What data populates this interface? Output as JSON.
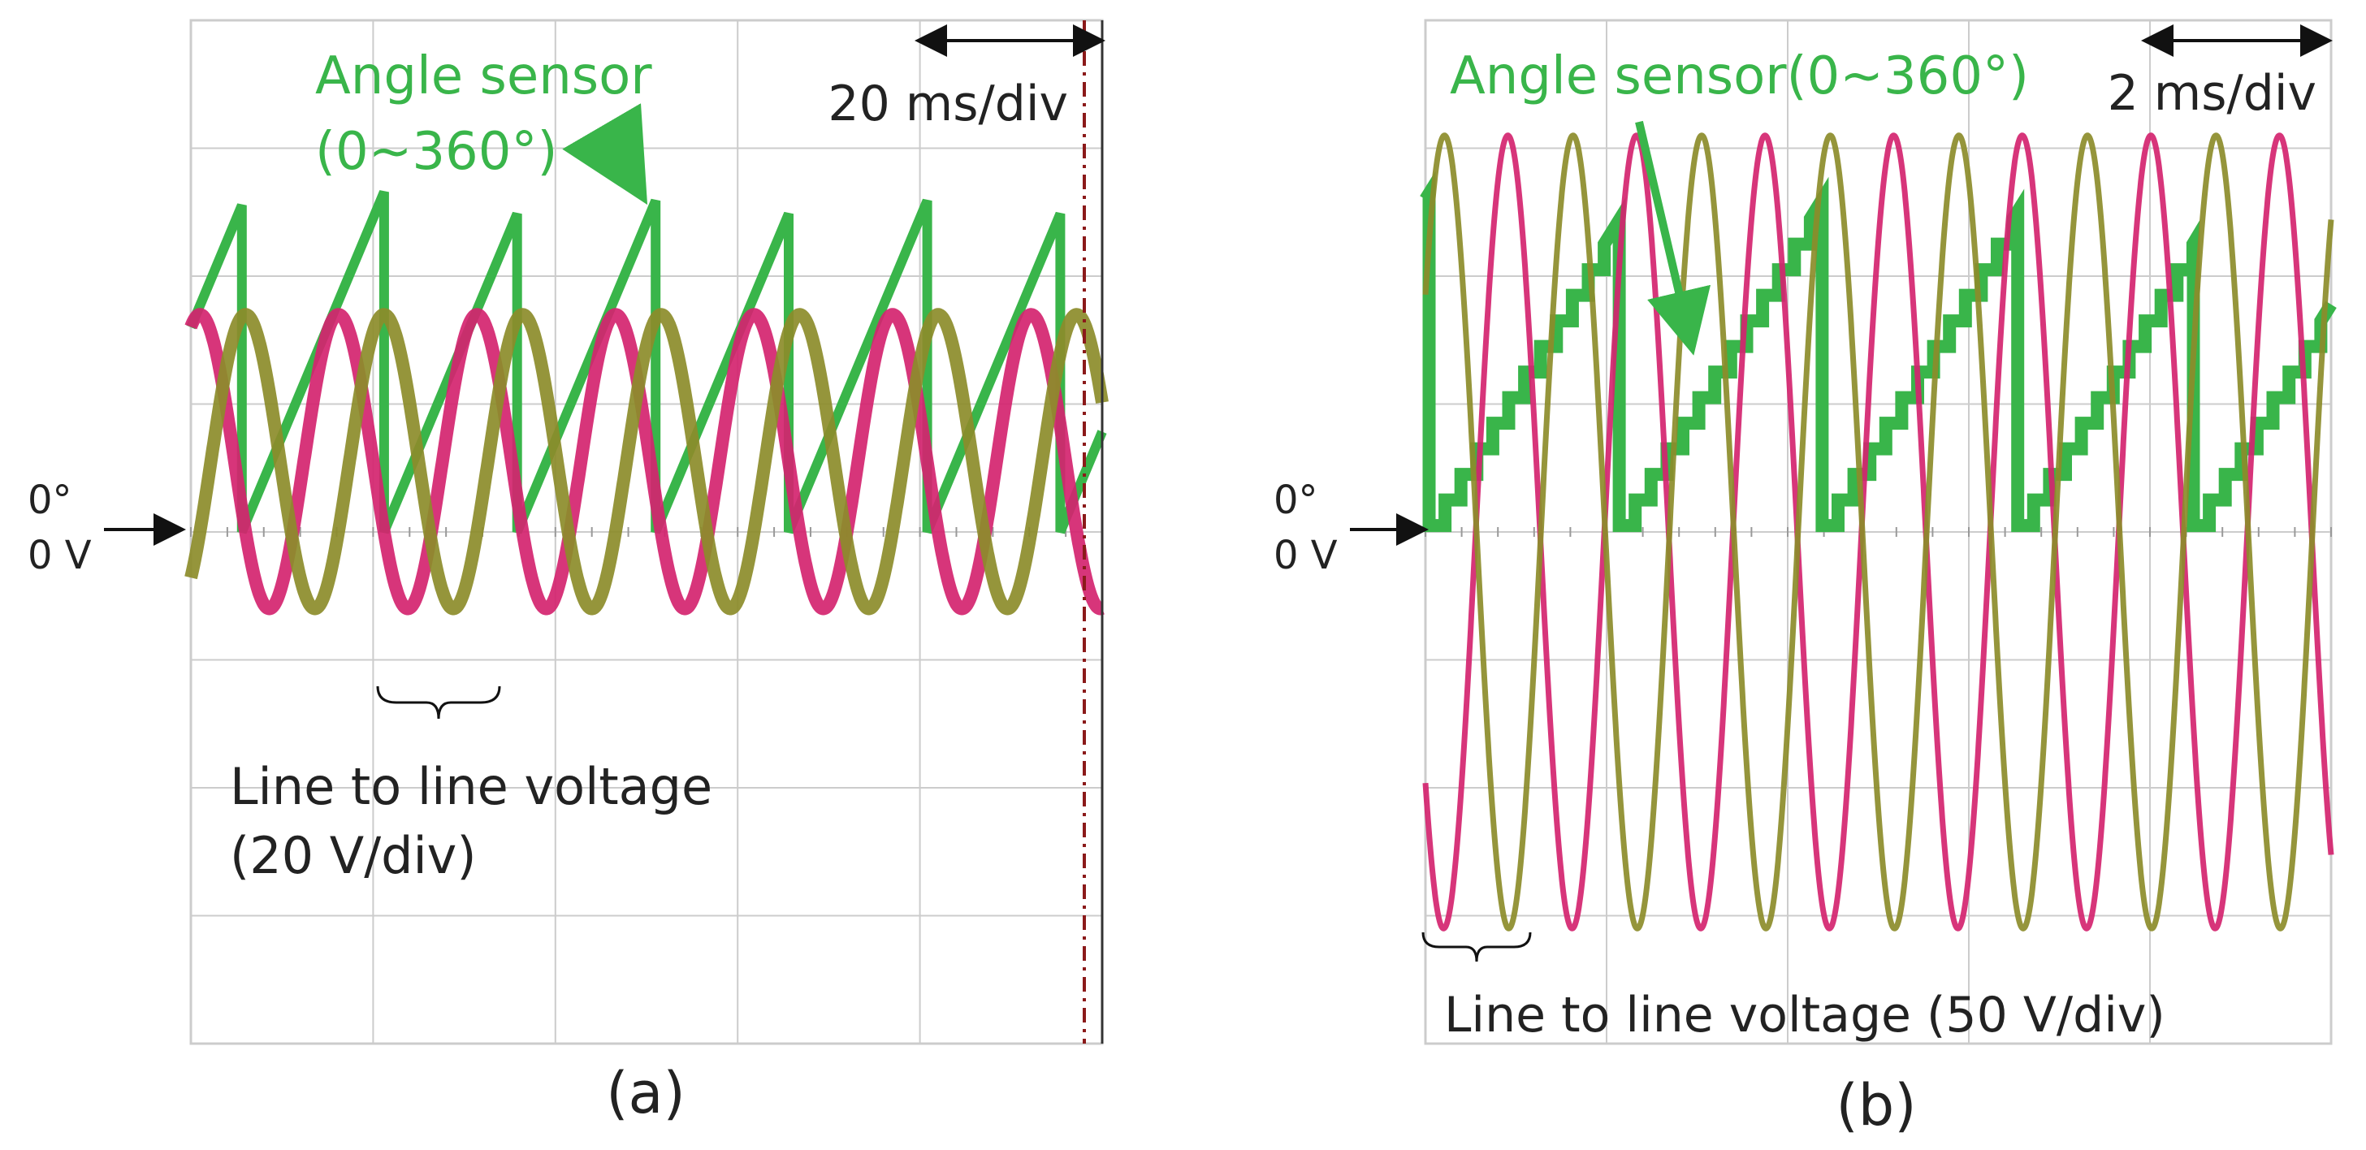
{
  "figure": {
    "colors": {
      "grid": "#cccccc",
      "grid_dot": "#999999",
      "angle_sensor": "#39b54a",
      "voltage_a": "#d4246f",
      "voltage_b": "#8c8c2a",
      "text": "#222222",
      "cursor": "#8b1a1a"
    }
  },
  "chart_data": [
    {
      "type": "line",
      "panel_label": "(a)",
      "timebase_label": "20 ms/div",
      "zero_label_deg": "0°",
      "zero_label_v": "0 V",
      "annotation_angle_line1": "Angle sensor",
      "annotation_angle_line2": "(0~360°)",
      "annotation_voltage_line1": "Line to line voltage",
      "annotation_voltage_line2": "(20 V/div)",
      "x_divisions": 5,
      "y_divisions": 8,
      "x_range_div": [
        0,
        5
      ],
      "y_range_div": [
        -4,
        4
      ],
      "grid": true,
      "series": [
        {
          "name": "Angle sensor",
          "kind": "sawtooth",
          "color_key": "angle_sensor",
          "reset_times_div": [
            0.28,
            1.06,
            1.79,
            2.55,
            3.28,
            4.04,
            4.77
          ],
          "low_div": 0.0,
          "high_div": 2.55,
          "start_div": 1.6
        },
        {
          "kind": "sine",
          "color_key": "voltage_a",
          "period_div": 0.76,
          "amplitude_div": 1.15,
          "offset_div": 0.55,
          "first_min_div": 0.43
        },
        {
          "kind": "sine",
          "color_key": "voltage_b",
          "period_div": 0.76,
          "amplitude_div": 1.15,
          "offset_div": 0.55,
          "first_min_div": 0.68
        }
      ]
    },
    {
      "type": "line",
      "panel_label": "(b)",
      "timebase_label": "2 ms/div",
      "zero_label_deg": "0°",
      "zero_label_v": "0 V",
      "annotation_angle_line1": "Angle sensor(0~360°)",
      "annotation_voltage_line1": "Line to line voltage (50 V/div)",
      "x_divisions": 5,
      "y_divisions": 8,
      "x_range_div": [
        0,
        5
      ],
      "y_range_div": [
        -4,
        4
      ],
      "grid": true,
      "series": [
        {
          "name": "Angle sensor(0~360°)",
          "kind": "staircase-sawtooth",
          "color_key": "angle_sensor",
          "reset_times_div": [
            0.02,
            1.07,
            2.19,
            3.27,
            4.24
          ],
          "low_div": 0.05,
          "high_div": 2.45,
          "start_div": 2.6
        },
        {
          "kind": "sine",
          "color_key": "voltage_a",
          "period_div": 0.71,
          "amplitude_div": 3.1,
          "offset_div": 0.0,
          "first_min_div": 0.1
        },
        {
          "kind": "sine",
          "color_key": "voltage_b",
          "period_div": 0.71,
          "amplitude_div": 3.1,
          "offset_div": 0.0,
          "first_min_div": 0.46
        }
      ]
    }
  ]
}
